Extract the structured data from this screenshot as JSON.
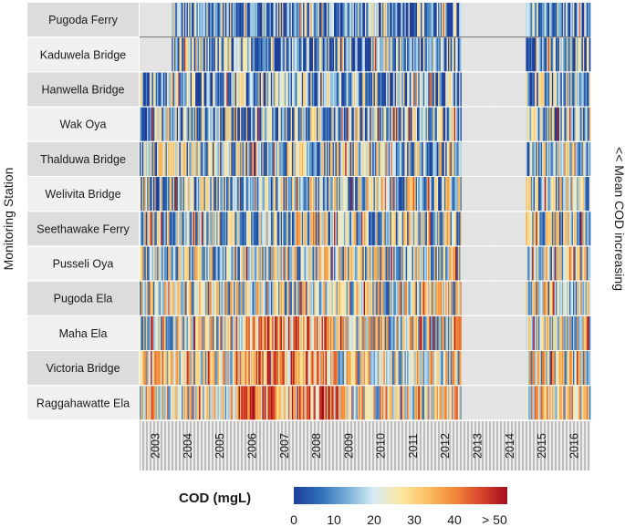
{
  "chart_data": {
    "type": "heatmap",
    "title": "",
    "ylabel": "Monitoring Station",
    "right_label": "<< Mean COD increasing",
    "colorbar": {
      "title": "COD (mgL)",
      "ticks": [
        "0",
        "10",
        "20",
        "30",
        "40",
        "> 50"
      ],
      "range": [
        0,
        55
      ],
      "colors": [
        "#1f3f99",
        "#2f6fb8",
        "#77aed6",
        "#d6ecf5",
        "#fbe7a0",
        "#fbbf63",
        "#f28a3a",
        "#d9452b",
        "#a50f1e"
      ]
    },
    "x_years": [
      "2003",
      "2004",
      "2005",
      "2006",
      "2007",
      "2008",
      "2009",
      "2010",
      "2011",
      "2012",
      "2013",
      "2014",
      "2015",
      "2016"
    ],
    "monthly_resolution": "weekly",
    "missing_color": "#e3e3e3",
    "stations": [
      {
        "name": "Pugoda Ferry",
        "start": "2004",
        "gap": [
          "2013",
          "2014"
        ]
      },
      {
        "name": "Kaduwela Bridge",
        "start": "2004",
        "gap": [
          "2013",
          "2014"
        ]
      },
      {
        "name": "Hanwella Bridge",
        "start": "2003",
        "gap": [
          "2013",
          "2014"
        ]
      },
      {
        "name": "Wak Oya",
        "start": "2003",
        "gap": [
          "2013",
          "2014"
        ]
      },
      {
        "name": "Thalduwa Bridge",
        "start": "2003",
        "gap": [
          "2013",
          "2014"
        ]
      },
      {
        "name": "Welivita Bridge",
        "start": "2003",
        "gap": [
          "2013",
          "2014"
        ]
      },
      {
        "name": "Seethawake Ferry",
        "start": "2003",
        "gap": [
          "2013",
          "2014"
        ]
      },
      {
        "name": "Pusseli Oya",
        "start": "2003",
        "gap": [
          "2013",
          "2014"
        ]
      },
      {
        "name": "Pugoda Ela",
        "start": "2003",
        "gap": [
          "2013",
          "2014"
        ]
      },
      {
        "name": "Maha Ela",
        "start": "2003",
        "gap": [
          "2013",
          "2014"
        ]
      },
      {
        "name": "Victoria Bridge",
        "start": "2003",
        "gap": [
          "2013",
          "2014"
        ]
      },
      {
        "name": "Raggahawatte Ela",
        "start": "2003",
        "gap": [
          "2013",
          "2014"
        ]
      }
    ]
  }
}
